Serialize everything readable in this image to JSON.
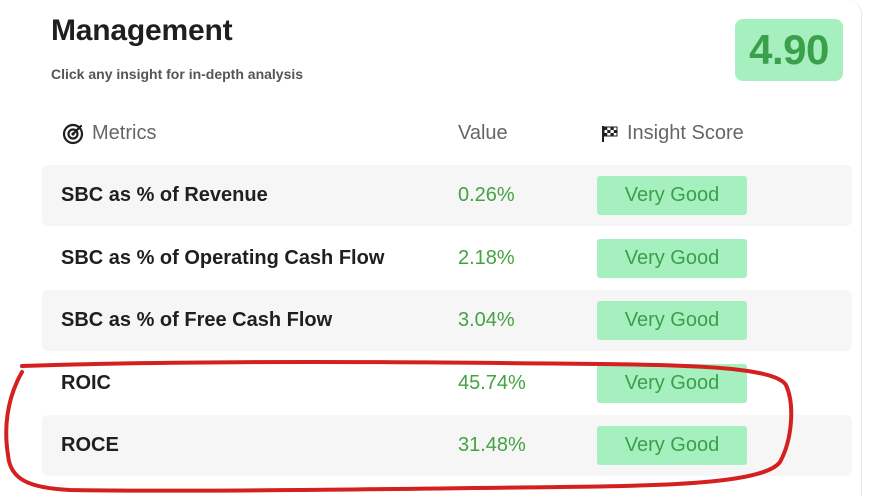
{
  "header": {
    "title": "Management",
    "subtitle": "Click any insight for in-depth analysis",
    "score": "4.90"
  },
  "table": {
    "columns": {
      "metrics": "Metrics",
      "value": "Value",
      "insight": "Insight Score"
    },
    "rows": [
      {
        "name": "SBC as % of Revenue",
        "value": "0.26%",
        "score": "Very Good"
      },
      {
        "name": "SBC as % of Operating Cash Flow",
        "value": "2.18%",
        "score": "Very Good"
      },
      {
        "name": "SBC as % of Free Cash Flow",
        "value": "3.04%",
        "score": "Very Good"
      },
      {
        "name": "ROIC",
        "value": "45.74%",
        "score": "Very Good"
      },
      {
        "name": "ROCE",
        "value": "31.48%",
        "score": "Very Good"
      }
    ]
  },
  "icons": {
    "metrics": "target-icon",
    "insight": "checkered-flag-icon"
  },
  "colors": {
    "accent_green": "#3aa04a",
    "badge_bg": "#a6efbe",
    "value_green": "#44a244",
    "annotation_red": "#d42020"
  }
}
